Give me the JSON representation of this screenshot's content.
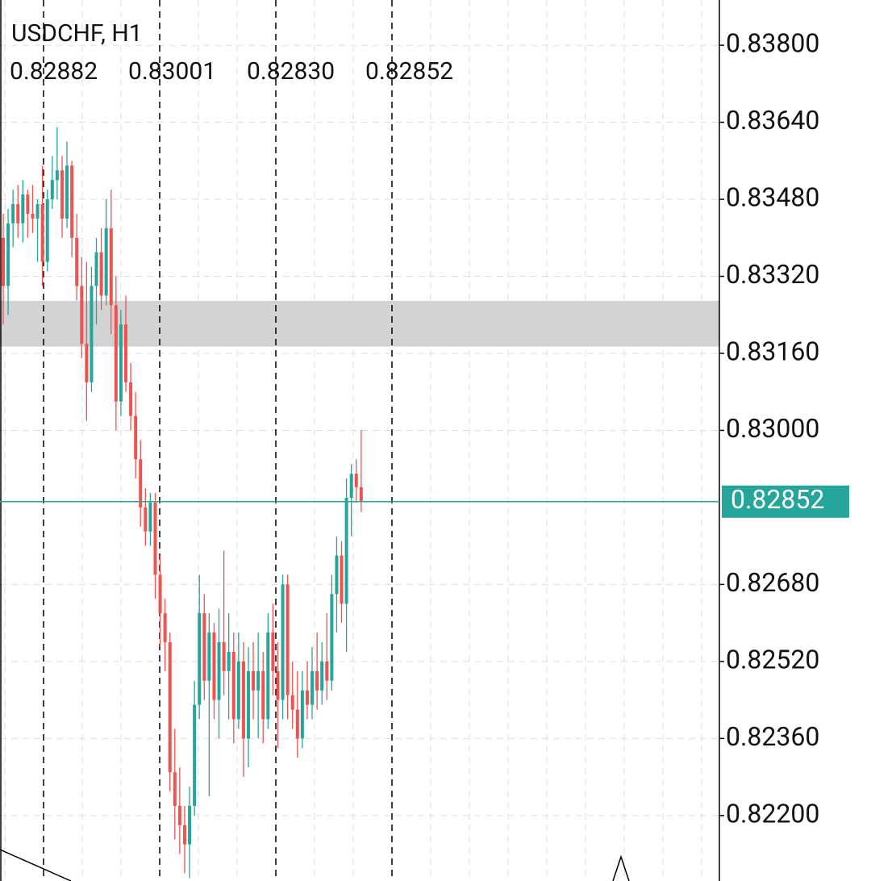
{
  "chart_data": {
    "type": "candlestick",
    "title": "USDCHF, H1",
    "header_values": [
      "0.82882",
      "0.83001",
      "0.82830",
      "0.82852"
    ],
    "up_color": "#26a69a",
    "down_color": "#ef5350",
    "open": [
      0.834,
      0.833,
      0.8343,
      0.8347,
      0.8343,
      0.8349,
      0.8345,
      0.8344,
      0.8347,
      0.8335,
      0.8348,
      0.8352,
      0.8354,
      0.8344,
      0.8355,
      0.834,
      0.833,
      0.8318,
      0.831,
      0.833,
      0.8337,
      0.8328,
      0.8342,
      0.8326,
      0.8306,
      0.8322,
      0.831,
      0.8303,
      0.8294,
      0.8284,
      0.8279,
      0.8285,
      0.827,
      0.8262,
      0.8256,
      0.8229,
      0.8222,
      0.8218,
      0.8214,
      0.8222,
      0.8243,
      0.8262,
      0.8248,
      0.8258,
      0.8244,
      0.8256,
      0.825,
      0.8254,
      0.824,
      0.8252,
      0.8236,
      0.825,
      0.8246,
      0.825,
      0.824,
      0.8258,
      0.825,
      0.8244,
      0.8268,
      0.8245,
      0.8242,
      0.8236,
      0.8246,
      0.8243,
      0.825,
      0.8246,
      0.8252,
      0.8248,
      0.8266,
      0.8274,
      0.8264,
      0.8286,
      0.8291,
      0.82882
    ],
    "high": [
      0.8345,
      0.8346,
      0.835,
      0.8351,
      0.8352,
      0.835,
      0.8351,
      0.8348,
      0.8355,
      0.835,
      0.8357,
      0.8363,
      0.8357,
      0.836,
      0.8356,
      0.8345,
      0.8336,
      0.8335,
      0.8334,
      0.834,
      0.8342,
      0.8348,
      0.835,
      0.8332,
      0.8325,
      0.8328,
      0.8314,
      0.8308,
      0.8298,
      0.8288,
      0.8287,
      0.8287,
      0.8274,
      0.8265,
      0.8258,
      0.8238,
      0.823,
      0.8222,
      0.8226,
      0.8248,
      0.827,
      0.8266,
      0.8262,
      0.826,
      0.8263,
      0.8275,
      0.8262,
      0.8258,
      0.8258,
      0.8256,
      0.8255,
      0.8256,
      0.8258,
      0.8254,
      0.8262,
      0.8264,
      0.8256,
      0.827,
      0.827,
      0.8252,
      0.825,
      0.825,
      0.8252,
      0.8255,
      0.8258,
      0.8256,
      0.8262,
      0.827,
      0.8278,
      0.8277,
      0.829,
      0.8293,
      0.8294,
      0.83001
    ],
    "low": [
      0.8322,
      0.8324,
      0.8338,
      0.834,
      0.8339,
      0.834,
      0.8341,
      0.8335,
      0.833,
      0.8333,
      0.8346,
      0.8348,
      0.834,
      0.8342,
      0.8336,
      0.8327,
      0.8315,
      0.8302,
      0.8308,
      0.8322,
      0.8325,
      0.8326,
      0.832,
      0.83,
      0.8303,
      0.8308,
      0.83,
      0.829,
      0.828,
      0.8276,
      0.8276,
      0.8265,
      0.8255,
      0.825,
      0.8225,
      0.8215,
      0.8212,
      0.8208,
      0.8207,
      0.822,
      0.824,
      0.8244,
      0.8224,
      0.824,
      0.8236,
      0.8245,
      0.824,
      0.8235,
      0.8238,
      0.8228,
      0.823,
      0.824,
      0.8236,
      0.8235,
      0.8238,
      0.8245,
      0.8234,
      0.824,
      0.824,
      0.8238,
      0.8232,
      0.8234,
      0.824,
      0.824,
      0.8242,
      0.8243,
      0.8244,
      0.8246,
      0.8258,
      0.826,
      0.8254,
      0.8278,
      0.8285,
      0.8283
    ],
    "close": [
      0.833,
      0.8343,
      0.8347,
      0.8343,
      0.8349,
      0.8345,
      0.8344,
      0.8347,
      0.8335,
      0.8348,
      0.8352,
      0.8354,
      0.8344,
      0.8355,
      0.834,
      0.833,
      0.8318,
      0.831,
      0.833,
      0.8337,
      0.8328,
      0.8342,
      0.8326,
      0.8306,
      0.8322,
      0.831,
      0.8303,
      0.8294,
      0.8284,
      0.8279,
      0.8285,
      0.827,
      0.8262,
      0.8256,
      0.8229,
      0.8222,
      0.8218,
      0.8214,
      0.8222,
      0.8243,
      0.8262,
      0.8248,
      0.8258,
      0.8244,
      0.8256,
      0.825,
      0.8254,
      0.824,
      0.8252,
      0.8236,
      0.825,
      0.8246,
      0.825,
      0.824,
      0.8258,
      0.825,
      0.8244,
      0.8268,
      0.8245,
      0.8242,
      0.8236,
      0.8246,
      0.8243,
      0.825,
      0.8246,
      0.8252,
      0.8248,
      0.8266,
      0.8274,
      0.8264,
      0.8286,
      0.8291,
      0.82882,
      0.82852
    ],
    "ylim": [
      0.82064,
      0.83894
    ],
    "yticks": [
      {
        "value": 0.838,
        "label": "0.83800"
      },
      {
        "value": 0.8364,
        "label": "0.83640"
      },
      {
        "value": 0.8348,
        "label": "0.83480"
      },
      {
        "value": 0.8332,
        "label": "0.83320"
      },
      {
        "value": 0.8316,
        "label": "0.83160"
      },
      {
        "value": 0.83,
        "label": "0.83000"
      },
      {
        "value": 0.8268,
        "label": "0.82680"
      },
      {
        "value": 0.8252,
        "label": "0.82520"
      },
      {
        "value": 0.8236,
        "label": "0.82360"
      },
      {
        "value": 0.822,
        "label": "0.82200"
      }
    ],
    "price_line": {
      "value": 0.82852,
      "label": "0.82852",
      "color": "#26a69a"
    },
    "zone": {
      "from": 0.83174,
      "to": 0.83269,
      "color": "#d3d3d3"
    },
    "grid": true
  }
}
